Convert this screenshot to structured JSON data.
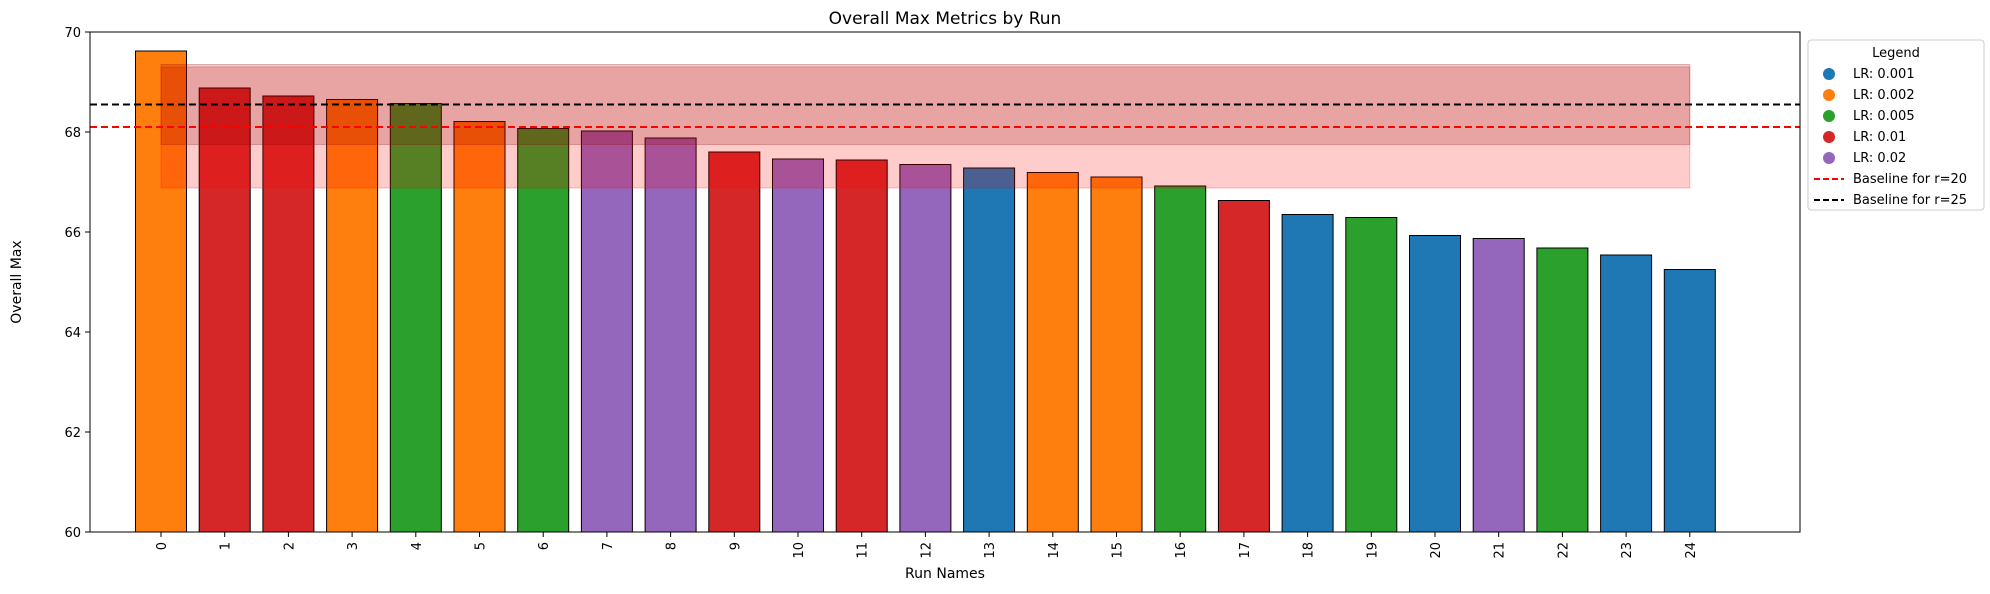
{
  "chart_data": {
    "type": "bar",
    "title": "Overall Max Metrics by Run",
    "xlabel": "Run Names",
    "ylabel": "Overall Max",
    "ylim": [
      60,
      70
    ],
    "yticks": [
      60,
      62,
      64,
      66,
      68,
      70
    ],
    "grid": false,
    "legend_placement": "outside top-right",
    "categories": [
      "0",
      "1",
      "2",
      "3",
      "4",
      "5",
      "6",
      "7",
      "8",
      "9",
      "10",
      "11",
      "12",
      "13",
      "14",
      "15",
      "16",
      "17",
      "18",
      "19",
      "20",
      "21",
      "22",
      "23",
      "24"
    ],
    "values": [
      69.62,
      68.88,
      68.72,
      68.65,
      68.57,
      68.21,
      68.07,
      68.02,
      67.88,
      67.6,
      67.46,
      67.44,
      67.35,
      67.28,
      67.19,
      67.1,
      66.92,
      66.63,
      66.35,
      66.29,
      65.93,
      65.87,
      65.68,
      65.54,
      65.25
    ],
    "bar_lr": [
      "0.002",
      "0.01",
      "0.01",
      "0.002",
      "0.005",
      "0.002",
      "0.005",
      "0.02",
      "0.02",
      "0.01",
      "0.02",
      "0.01",
      "0.02",
      "0.001",
      "0.002",
      "0.002",
      "0.005",
      "0.01",
      "0.001",
      "0.005",
      "0.001",
      "0.02",
      "0.005",
      "0.001",
      "0.001"
    ],
    "lr_colors": {
      "0.001": "#1f77b4",
      "0.002": "#ff7f0e",
      "0.005": "#2ca02c",
      "0.01": "#d62728",
      "0.02": "#9467bd"
    },
    "baselines": [
      {
        "name": "Baseline for r=20",
        "value": 68.1,
        "color": "#ff0000",
        "band": [
          66.88,
          69.3
        ],
        "band_color": "#ff0000",
        "band_opacity": 0.2
      },
      {
        "name": "Baseline for r=25",
        "value": 68.55,
        "color": "#000000",
        "band": [
          67.75,
          69.35
        ],
        "band_color": "#8b0000",
        "band_opacity": 0.2
      }
    ],
    "band_x_range": [
      "0",
      "24"
    ],
    "legend": {
      "title": "Legend",
      "entries": [
        {
          "label": "LR: 0.001",
          "kind": "marker",
          "color": "#1f77b4"
        },
        {
          "label": "LR: 0.002",
          "kind": "marker",
          "color": "#ff7f0e"
        },
        {
          "label": "LR: 0.005",
          "kind": "marker",
          "color": "#2ca02c"
        },
        {
          "label": "LR: 0.01",
          "kind": "marker",
          "color": "#d62728"
        },
        {
          "label": "LR: 0.02",
          "kind": "marker",
          "color": "#9467bd"
        },
        {
          "label": "Baseline for r=20",
          "kind": "dashline",
          "color": "#ff0000"
        },
        {
          "label": "Baseline for r=25",
          "kind": "dashline",
          "color": "#000000"
        }
      ]
    }
  }
}
